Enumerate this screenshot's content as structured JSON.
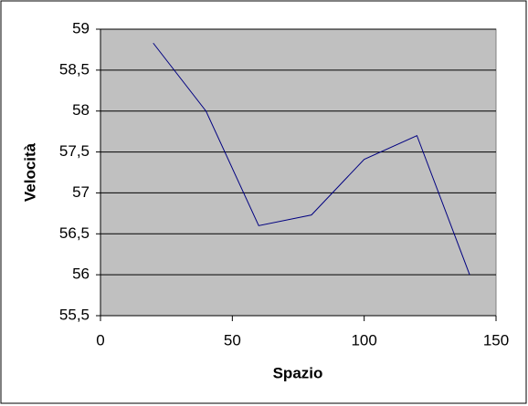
{
  "chart_data": {
    "type": "line",
    "x_label": "Spazio",
    "y_label": "Velocità",
    "x": [
      20,
      40,
      60,
      80,
      100,
      120,
      140
    ],
    "series": [
      {
        "color": "#000080",
        "values": [
          58.83,
          58.0,
          56.6,
          56.73,
          57.41,
          57.7,
          56.0
        ]
      }
    ],
    "xlim": [
      0,
      150
    ],
    "xticks": [
      0,
      50,
      100,
      150
    ],
    "ylim": [
      55.5,
      59
    ],
    "yticks": [
      {
        "value": 55.5,
        "label": "55,5"
      },
      56,
      {
        "value": 56.5,
        "label": "56,5"
      },
      57,
      {
        "value": 57.5,
        "label": "57,5"
      },
      58,
      {
        "value": 58.5,
        "label": "58,5"
      },
      59
    ],
    "grid": true,
    "plot_background": "#c0c0c0"
  }
}
